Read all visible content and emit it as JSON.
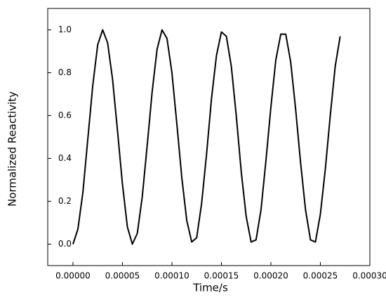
{
  "chart_data": {
    "type": "line",
    "xlabel": "Time/s",
    "ylabel": "Normalized Reactivity",
    "x": [
      0,
      5e-06,
      1e-05,
      1.5e-05,
      2e-05,
      2.5e-05,
      3e-05,
      3.5e-05,
      4e-05,
      4.5e-05,
      5e-05,
      5.5e-05,
      6e-05,
      6.5e-05,
      7e-05,
      7.5e-05,
      8e-05,
      8.5e-05,
      9e-05,
      9.5e-05,
      0.0001,
      0.000105,
      0.00011,
      0.000115,
      0.00012,
      0.000125,
      0.00013,
      0.000135,
      0.00014,
      0.000145,
      0.00015,
      0.000155,
      0.00016,
      0.000165,
      0.00017,
      0.000175,
      0.00018,
      0.000185,
      0.00019,
      0.000195,
      0.0002,
      0.000205,
      0.00021,
      0.000215,
      0.00022,
      0.000225,
      0.00023,
      0.000235,
      0.00024,
      0.000245,
      0.00025,
      0.000255,
      0.00026,
      0.000265,
      0.00027
    ],
    "series": [
      {
        "name": "Normalized Reactivity",
        "color": "#000000",
        "values": [
          0.0,
          0.07,
          0.24,
          0.49,
          0.74,
          0.93,
          1.0,
          0.94,
          0.77,
          0.53,
          0.28,
          0.08,
          0.0,
          0.05,
          0.22,
          0.46,
          0.71,
          0.91,
          1.0,
          0.96,
          0.8,
          0.56,
          0.31,
          0.11,
          0.01,
          0.03,
          0.19,
          0.42,
          0.68,
          0.88,
          0.99,
          0.97,
          0.83,
          0.6,
          0.34,
          0.13,
          0.01,
          0.02,
          0.16,
          0.39,
          0.64,
          0.86,
          0.98,
          0.98,
          0.85,
          0.63,
          0.38,
          0.16,
          0.02,
          0.01,
          0.14,
          0.35,
          0.6,
          0.83,
          0.97
        ]
      }
    ],
    "xlim": [
      -2.55e-05,
      0.0003
    ],
    "ylim": [
      -0.1,
      1.1
    ],
    "xticks": [
      {
        "value": 0,
        "label": "0.00000"
      },
      {
        "value": 5e-05,
        "label": "0.00005"
      },
      {
        "value": 0.0001,
        "label": "0.00010"
      },
      {
        "value": 0.00015,
        "label": "0.00015"
      },
      {
        "value": 0.0002,
        "label": "0.00020"
      },
      {
        "value": 0.00025,
        "label": "0.00025"
      },
      {
        "value": 0.0003,
        "label": "0.00030"
      }
    ],
    "yticks": [
      {
        "value": 0,
        "label": "0.0"
      },
      0.2,
      0.4,
      0.6,
      0.8,
      {
        "value": 1,
        "label": "1.0"
      }
    ],
    "grid": false
  }
}
